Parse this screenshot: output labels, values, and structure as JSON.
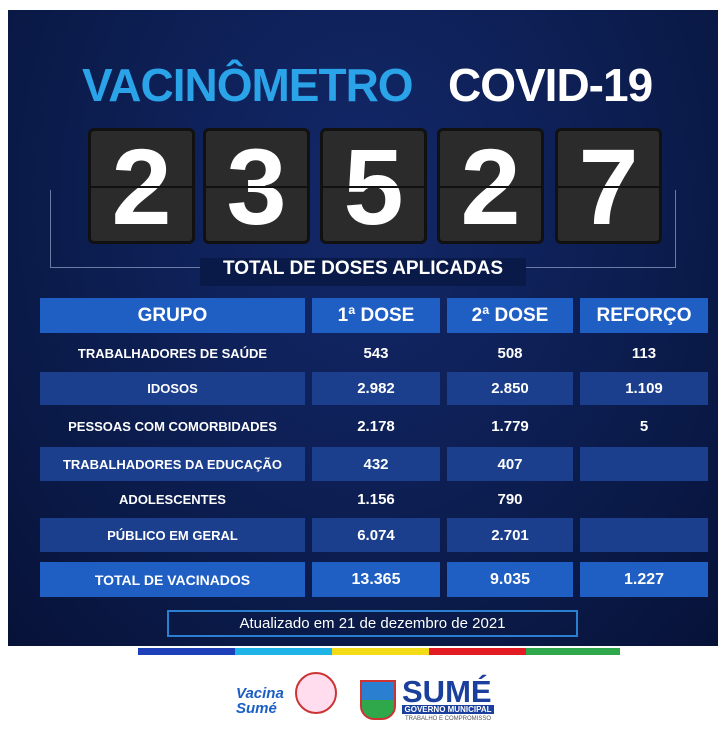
{
  "header": {
    "title_part1": "VACINÔMETRO",
    "title_part2": "COVID-19"
  },
  "counter": {
    "digits": [
      "2",
      "3",
      "5",
      "2",
      "7"
    ],
    "caption": "TOTAL DE DOSES APLICADAS"
  },
  "table": {
    "headers": [
      "GRUPO",
      "1ª DOSE",
      "2ª DOSE",
      "REFORÇO"
    ],
    "rows": [
      [
        "TRABALHADORES DE SAÚDE",
        "543",
        "508",
        "113"
      ],
      [
        "IDOSOS",
        "2.982",
        "2.850",
        "1.109"
      ],
      [
        "PESSOAS COM COMORBIDADES",
        "2.178",
        "1.779",
        "5"
      ],
      [
        "TRABALHADORES DA EDUCAÇÃO",
        "432",
        "407"
      ],
      [
        "ADOLESCENTES",
        "1.156",
        "790"
      ],
      [
        "PÚBLICO EM GERAL",
        "6.074",
        "2.701"
      ]
    ],
    "total": [
      "TOTAL DE VACINADOS",
      "13.365",
      "9.035",
      "1.227"
    ]
  },
  "updated": "Atualizado em  21 de dezembro de 2021",
  "footer": {
    "campaign_logo": "Vacina Sumé",
    "city": "SUMÉ",
    "government": "GOVERNO MUNICIPAL",
    "motto": "TRABALHO E COMPROMISSO"
  }
}
